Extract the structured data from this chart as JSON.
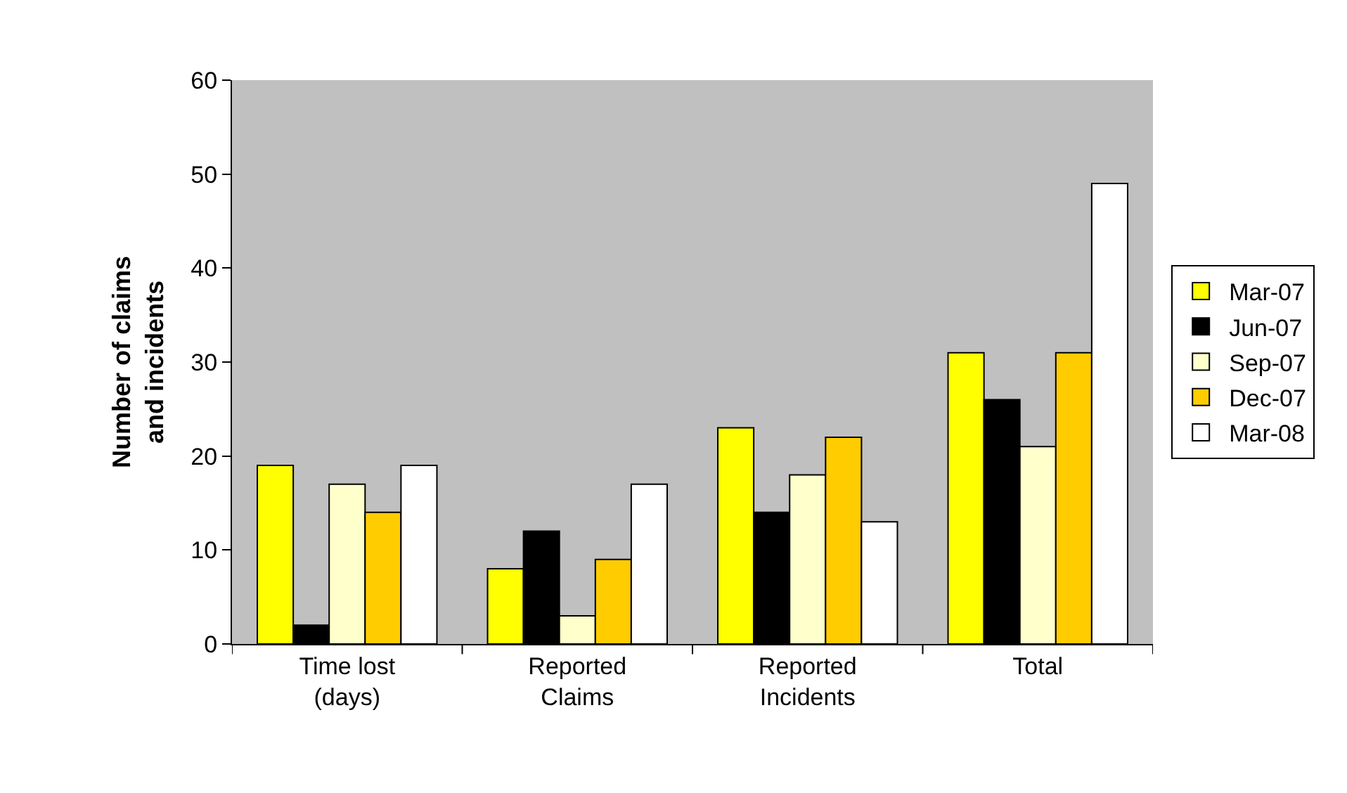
{
  "chart_data": {
    "type": "bar",
    "ylabel": "Number of claims\nand incidents",
    "categories": [
      "Time lost\n(days)",
      "Reported\nClaims",
      "Reported\nIncidents",
      "Total"
    ],
    "series": [
      {
        "name": "Mar-07",
        "color": "#ffff00",
        "values": [
          19,
          8,
          23,
          31
        ]
      },
      {
        "name": "Jun-07",
        "color": "#000000",
        "values": [
          2,
          12,
          14,
          26
        ]
      },
      {
        "name": "Sep-07",
        "color": "#ffffcc",
        "values": [
          17,
          3,
          18,
          21
        ]
      },
      {
        "name": "Dec-07",
        "color": "#ffcc00",
        "values": [
          14,
          9,
          22,
          31
        ]
      },
      {
        "name": "Mar-08",
        "color": "#ffffff",
        "values": [
          19,
          17,
          13,
          49
        ]
      }
    ],
    "ylim": [
      0,
      60
    ],
    "yticks": [
      0,
      10,
      20,
      30,
      40,
      50,
      60
    ],
    "grid": false,
    "legend": "right"
  }
}
